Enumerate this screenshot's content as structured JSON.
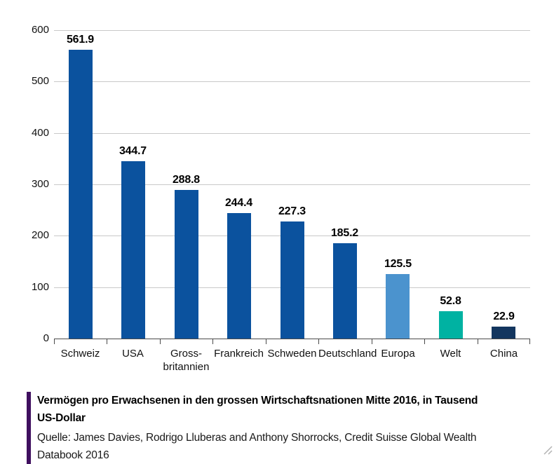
{
  "chart_data": {
    "type": "bar",
    "title": "Vermögen pro Erwachsenen in den grossen Wirtschaftsnationen Mitte 2016, in Tausend US-Dollar",
    "categories": [
      "Schweiz",
      "USA",
      "Gross-\nbritannien",
      "Frankreich",
      "Schweden",
      "Deutschland",
      "Europa",
      "Welt",
      "China"
    ],
    "values": [
      561.9,
      344.7,
      288.8,
      244.4,
      227.3,
      185.2,
      125.5,
      52.8,
      22.9
    ],
    "bar_colors": [
      "#0b529e",
      "#0b529e",
      "#0b529e",
      "#0b529e",
      "#0b529e",
      "#0b529e",
      "#4b93ce",
      "#00b2a2",
      "#13365f"
    ],
    "xlabel": "",
    "ylabel": "",
    "ylim": [
      0,
      600
    ],
    "yticks": [
      0,
      100,
      200,
      300,
      400,
      500,
      600
    ],
    "grid": true,
    "legend_position": "none"
  },
  "caption": {
    "title_lines": [
      "Vermögen pro Erwachsenen in den grossen Wirtschaftsnationen Mitte 2016, in Tausend",
      "US-Dollar"
    ],
    "source_lines": [
      "Quelle: James Davies, Rodrigo Lluberas and Anthony Shorrocks, Credit Suisse Global Wealth",
      "Databook 2016"
    ],
    "accent_color": "#3f0f5f"
  },
  "colors": {
    "bar_default": "#0b529e",
    "bar_europa": "#4b93ce",
    "bar_welt": "#00b2a2",
    "bar_china": "#13365f",
    "gridline": "#c9c9c9",
    "axis": "#4a4a4a",
    "accent_purple": "#3f0f5f",
    "resize_grip": "#b3b3b3"
  }
}
